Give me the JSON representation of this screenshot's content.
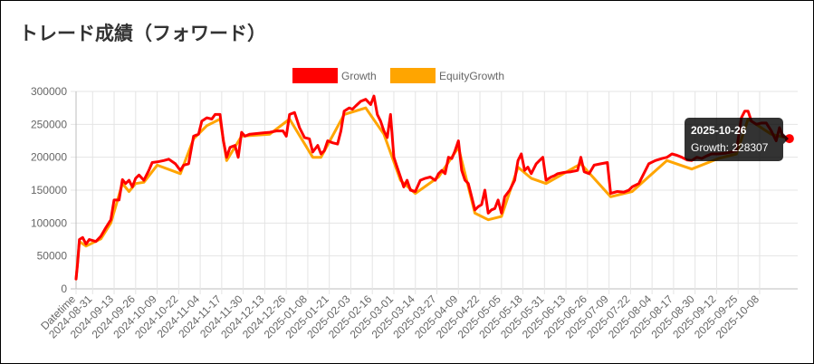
{
  "page": {
    "title": "トレード成績（フォワード）"
  },
  "chart_data": {
    "type": "line",
    "title": "",
    "xlabel": "",
    "ylabel": "",
    "ylim": [
      0,
      300000
    ],
    "yticks": [
      0,
      50000,
      100000,
      150000,
      200000,
      250000,
      300000
    ],
    "x_start": "2024-08-21",
    "x_end": "2025-10-31",
    "xtick_labels": [
      "Datetime",
      "2024-08-31",
      "2024-09-13",
      "2024-09-26",
      "2024-10-09",
      "2024-10-22",
      "2024-11-04",
      "2024-11-17",
      "2024-11-30",
      "2024-12-13",
      "2024-12-26",
      "2025-01-08",
      "2025-01-21",
      "2025-02-03",
      "2025-02-16",
      "2025-03-01",
      "2025-03-14",
      "2025-03-27",
      "2025-04-09",
      "2025-04-22",
      "2025-05-05",
      "2025-05-18",
      "2025-05-31",
      "2025-06-13",
      "2025-06-26",
      "2025-07-09",
      "2025-07-22",
      "2025-08-04",
      "2025-08-17",
      "2025-08-30",
      "2025-09-12",
      "2025-09-25",
      "2025-10-08"
    ],
    "grid": true,
    "legend_position": "top",
    "series": [
      {
        "name": "Growth",
        "color": "#ff0000",
        "points": [
          [
            "2024-08-21",
            15000
          ],
          [
            "2024-08-22",
            40000
          ],
          [
            "2024-08-23",
            75000
          ],
          [
            "2024-08-25",
            78000
          ],
          [
            "2024-08-27",
            68000
          ],
          [
            "2024-08-29",
            75000
          ],
          [
            "2024-09-02",
            72000
          ],
          [
            "2024-09-05",
            80000
          ],
          [
            "2024-09-08",
            93000
          ],
          [
            "2024-09-11",
            105000
          ],
          [
            "2024-09-13",
            135000
          ],
          [
            "2024-09-16",
            135000
          ],
          [
            "2024-09-18",
            166000
          ],
          [
            "2024-09-20",
            160000
          ],
          [
            "2024-09-22",
            165000
          ],
          [
            "2024-09-24",
            155000
          ],
          [
            "2024-09-26",
            168000
          ],
          [
            "2024-09-28",
            173000
          ],
          [
            "2024-10-01",
            165000
          ],
          [
            "2024-10-04",
            180000
          ],
          [
            "2024-10-06",
            192000
          ],
          [
            "2024-10-09",
            193000
          ],
          [
            "2024-10-13",
            195000
          ],
          [
            "2024-10-16",
            197000
          ],
          [
            "2024-10-20",
            190000
          ],
          [
            "2024-10-23",
            180000
          ],
          [
            "2024-10-25",
            188000
          ],
          [
            "2024-10-28",
            190000
          ],
          [
            "2024-10-31",
            232000
          ],
          [
            "2024-11-03",
            235000
          ],
          [
            "2024-11-05",
            255000
          ],
          [
            "2024-11-08",
            260000
          ],
          [
            "2024-11-11",
            258000
          ],
          [
            "2024-11-13",
            265000
          ],
          [
            "2024-11-16",
            265000
          ],
          [
            "2024-11-18",
            225000
          ],
          [
            "2024-11-20",
            200000
          ],
          [
            "2024-11-22",
            215000
          ],
          [
            "2024-11-25",
            218000
          ],
          [
            "2024-11-27",
            200000
          ],
          [
            "2024-11-29",
            238000
          ],
          [
            "2024-12-01",
            232000
          ],
          [
            "2024-12-04",
            235000
          ],
          [
            "2024-12-08",
            236000
          ],
          [
            "2024-12-12",
            237000
          ],
          [
            "2024-12-16",
            238000
          ],
          [
            "2024-12-20",
            240000
          ],
          [
            "2024-12-24",
            240000
          ],
          [
            "2024-12-26",
            232000
          ],
          [
            "2024-12-28",
            265000
          ],
          [
            "2024-12-31",
            268000
          ],
          [
            "2025-01-03",
            245000
          ],
          [
            "2025-01-06",
            230000
          ],
          [
            "2025-01-09",
            228000
          ],
          [
            "2025-01-11",
            208000
          ],
          [
            "2025-01-14",
            218000
          ],
          [
            "2025-01-16",
            205000
          ],
          [
            "2025-01-18",
            210000
          ],
          [
            "2025-01-20",
            225000
          ],
          [
            "2025-01-23",
            222000
          ],
          [
            "2025-01-26",
            220000
          ],
          [
            "2025-01-28",
            240000
          ],
          [
            "2025-01-30",
            270000
          ],
          [
            "2025-02-02",
            275000
          ],
          [
            "2025-02-04",
            273000
          ],
          [
            "2025-02-06",
            278000
          ],
          [
            "2025-02-09",
            285000
          ],
          [
            "2025-02-12",
            288000
          ],
          [
            "2025-02-15",
            280000
          ],
          [
            "2025-02-17",
            293000
          ],
          [
            "2025-02-19",
            265000
          ],
          [
            "2025-02-21",
            255000
          ],
          [
            "2025-02-23",
            240000
          ],
          [
            "2025-02-25",
            230000
          ],
          [
            "2025-02-27",
            265000
          ],
          [
            "2025-03-01",
            200000
          ],
          [
            "2025-03-03",
            185000
          ],
          [
            "2025-03-05",
            170000
          ],
          [
            "2025-03-07",
            155000
          ],
          [
            "2025-03-09",
            165000
          ],
          [
            "2025-03-11",
            150000
          ],
          [
            "2025-03-14",
            148000
          ],
          [
            "2025-03-17",
            165000
          ],
          [
            "2025-03-20",
            168000
          ],
          [
            "2025-03-23",
            170000
          ],
          [
            "2025-03-26",
            165000
          ],
          [
            "2025-03-28",
            175000
          ],
          [
            "2025-03-30",
            180000
          ],
          [
            "2025-04-01",
            175000
          ],
          [
            "2025-04-03",
            200000
          ],
          [
            "2025-04-05",
            198000
          ],
          [
            "2025-04-07",
            210000
          ],
          [
            "2025-04-09",
            225000
          ],
          [
            "2025-04-11",
            180000
          ],
          [
            "2025-04-13",
            165000
          ],
          [
            "2025-04-15",
            160000
          ],
          [
            "2025-04-17",
            140000
          ],
          [
            "2025-04-19",
            120000
          ],
          [
            "2025-04-21",
            125000
          ],
          [
            "2025-04-23",
            128000
          ],
          [
            "2025-04-25",
            150000
          ],
          [
            "2025-04-27",
            115000
          ],
          [
            "2025-04-29",
            120000
          ],
          [
            "2025-05-01",
            122000
          ],
          [
            "2025-05-03",
            135000
          ],
          [
            "2025-05-05",
            115000
          ],
          [
            "2025-05-07",
            140000
          ],
          [
            "2025-05-10",
            150000
          ],
          [
            "2025-05-13",
            165000
          ],
          [
            "2025-05-15",
            195000
          ],
          [
            "2025-05-17",
            205000
          ],
          [
            "2025-05-19",
            180000
          ],
          [
            "2025-05-21",
            185000
          ],
          [
            "2025-05-23",
            175000
          ],
          [
            "2025-05-26",
            190000
          ],
          [
            "2025-05-28",
            195000
          ],
          [
            "2025-05-30",
            200000
          ],
          [
            "2025-06-01",
            165000
          ],
          [
            "2025-06-04",
            170000
          ],
          [
            "2025-06-06",
            172000
          ],
          [
            "2025-06-08",
            175000
          ],
          [
            "2025-06-12",
            177000
          ],
          [
            "2025-06-16",
            178000
          ],
          [
            "2025-06-20",
            180000
          ],
          [
            "2025-06-22",
            200000
          ],
          [
            "2025-06-24",
            178000
          ],
          [
            "2025-06-27",
            175000
          ],
          [
            "2025-06-30",
            188000
          ],
          [
            "2025-07-04",
            190000
          ],
          [
            "2025-07-08",
            192000
          ],
          [
            "2025-07-10",
            145000
          ],
          [
            "2025-07-14",
            148000
          ],
          [
            "2025-07-18",
            147000
          ],
          [
            "2025-07-21",
            150000
          ],
          [
            "2025-07-23",
            155000
          ],
          [
            "2025-07-27",
            160000
          ],
          [
            "2025-07-30",
            175000
          ],
          [
            "2025-08-02",
            190000
          ],
          [
            "2025-08-06",
            195000
          ],
          [
            "2025-08-10",
            198000
          ],
          [
            "2025-08-13",
            200000
          ],
          [
            "2025-08-16",
            205000
          ],
          [
            "2025-08-19",
            203000
          ],
          [
            "2025-08-22",
            200000
          ],
          [
            "2025-08-25",
            196000
          ],
          [
            "2025-08-28",
            195000
          ],
          [
            "2025-08-31",
            200000
          ],
          [
            "2025-09-03",
            198000
          ],
          [
            "2025-09-06",
            202000
          ],
          [
            "2025-09-09",
            205000
          ],
          [
            "2025-09-13",
            205000
          ],
          [
            "2025-09-17",
            206000
          ],
          [
            "2025-09-21",
            208000
          ],
          [
            "2025-09-24",
            210000
          ],
          [
            "2025-09-27",
            260000
          ],
          [
            "2025-09-29",
            270000
          ],
          [
            "2025-10-01",
            270000
          ],
          [
            "2025-10-03",
            255000
          ],
          [
            "2025-10-06",
            250000
          ],
          [
            "2025-10-09",
            252000
          ],
          [
            "2025-10-12",
            252000
          ],
          [
            "2025-10-15",
            240000
          ],
          [
            "2025-10-18",
            225000
          ],
          [
            "2025-10-20",
            245000
          ],
          [
            "2025-10-22",
            232000
          ],
          [
            "2025-10-26",
            228307
          ]
        ]
      },
      {
        "name": "EquityGrowth",
        "color": "#ffa500",
        "points": [
          [
            "2024-08-21",
            15000
          ],
          [
            "2024-08-23",
            72000
          ],
          [
            "2024-08-27",
            65000
          ],
          [
            "2024-09-05",
            76000
          ],
          [
            "2024-09-11",
            100000
          ],
          [
            "2024-09-18",
            160000
          ],
          [
            "2024-09-22",
            148000
          ],
          [
            "2024-09-26",
            160000
          ],
          [
            "2024-10-01",
            162000
          ],
          [
            "2024-10-09",
            188000
          ],
          [
            "2024-10-23",
            175000
          ],
          [
            "2024-10-31",
            228000
          ],
          [
            "2024-11-08",
            248000
          ],
          [
            "2024-11-16",
            258000
          ],
          [
            "2024-11-20",
            195000
          ],
          [
            "2024-11-29",
            232000
          ],
          [
            "2024-12-16",
            235000
          ],
          [
            "2024-12-28",
            258000
          ],
          [
            "2025-01-11",
            200000
          ],
          [
            "2025-01-16",
            200000
          ],
          [
            "2025-01-30",
            265000
          ],
          [
            "2025-02-12",
            275000
          ],
          [
            "2025-02-23",
            235000
          ],
          [
            "2025-03-05",
            165000
          ],
          [
            "2025-03-14",
            145000
          ],
          [
            "2025-03-28",
            170000
          ],
          [
            "2025-04-09",
            215000
          ],
          [
            "2025-04-19",
            115000
          ],
          [
            "2025-04-27",
            105000
          ],
          [
            "2025-05-05",
            110000
          ],
          [
            "2025-05-15",
            185000
          ],
          [
            "2025-05-23",
            168000
          ],
          [
            "2025-06-01",
            160000
          ],
          [
            "2025-06-22",
            190000
          ],
          [
            "2025-07-10",
            140000
          ],
          [
            "2025-07-23",
            148000
          ],
          [
            "2025-08-13",
            195000
          ],
          [
            "2025-08-28",
            182000
          ],
          [
            "2025-09-13",
            198000
          ],
          [
            "2025-09-24",
            205000
          ],
          [
            "2025-10-01",
            258000
          ],
          [
            "2025-10-15",
            235000
          ],
          [
            "2025-10-26",
            228307
          ]
        ]
      }
    ],
    "tooltip": {
      "date": "2025-10-26",
      "label": "Growth: 228307"
    }
  }
}
